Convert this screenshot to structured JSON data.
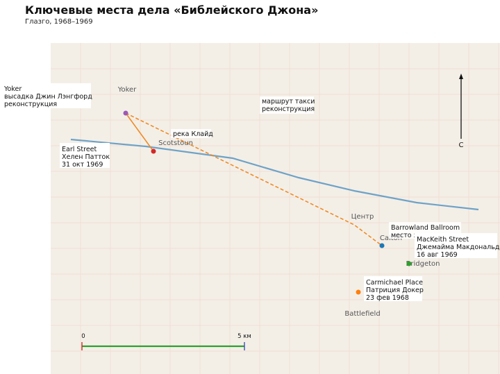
{
  "title": "Ключевые места дела «Библейского Джона»",
  "subtitle": "Глазго, 1968–1969",
  "map": {
    "background": "#f3efe7",
    "grid_color": "#efd9cf",
    "areas": [
      "Yoker",
      "Scotstoun",
      "Центр",
      "Calton",
      "Bridgeton",
      "Battlefield"
    ],
    "river": {
      "label": "река Клайд",
      "color": "#6fa2c7"
    },
    "taxi_route": {
      "label": [
        "маршрут такси",
        "реконструкция"
      ],
      "color": "#f08a24"
    },
    "north_arrow": {
      "label": "С"
    },
    "scale_bar": {
      "start_label": "0",
      "end_label": "5 км",
      "color": "#2ca02c"
    },
    "markers": [
      {
        "id": "yoker",
        "color": "#9b59b6",
        "lines": [
          "Yoker",
          "высадка Джин Лэнгфорд",
          "реконструкция"
        ]
      },
      {
        "id": "earl-street",
        "color": "#d62728",
        "lines": [
          "Earl Street",
          "Хелен Патток",
          "31 окт 1969"
        ]
      },
      {
        "id": "barrowland",
        "color": "#1f77b4",
        "lines": [
          "Barrowland Ballroom",
          "место знакомства"
        ]
      },
      {
        "id": "mackeith",
        "color": "#2ca02c",
        "lines": [
          "MacKeith Street",
          "Джемайма Макдональд",
          "16 авг 1969"
        ]
      },
      {
        "id": "carmichael",
        "color": "#ff7f0e",
        "lines": [
          "Carmichael Place",
          "Патриция Докер",
          "23 фев 1968"
        ]
      }
    ]
  }
}
